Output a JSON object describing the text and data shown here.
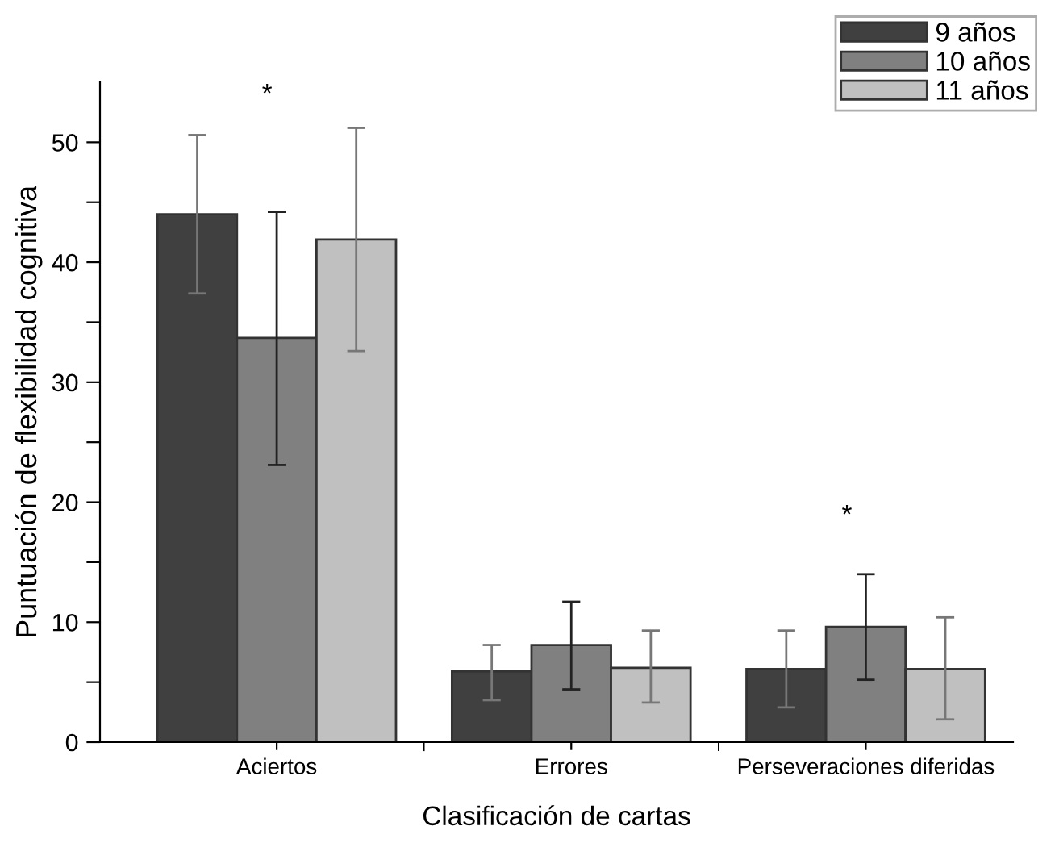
{
  "chart_data": {
    "type": "bar",
    "xlabel": "Clasificación de cartas",
    "ylabel": "Puntuación de flexibilidad cognitiva",
    "categories": [
      "Aciertos",
      "Errores",
      "Perseveraciones diferidas"
    ],
    "series": [
      {
        "name": "9 años",
        "color": "#404040",
        "values": [
          44.0,
          5.9,
          6.1
        ],
        "errors": [
          [
            37.4,
            50.6
          ],
          [
            3.5,
            8.1
          ],
          [
            2.9,
            9.3
          ]
        ]
      },
      {
        "name": "10 años",
        "color": "#808080",
        "values": [
          33.7,
          8.1,
          9.6
        ],
        "errors": [
          [
            23.1,
            44.2
          ],
          [
            4.4,
            11.7
          ],
          [
            5.2,
            14.0
          ]
        ]
      },
      {
        "name": "11 años",
        "color": "#c0c0c0",
        "values": [
          41.9,
          6.2,
          6.1
        ],
        "errors": [
          [
            32.6,
            51.2
          ],
          [
            3.3,
            9.3
          ],
          [
            1.9,
            10.4
          ]
        ]
      }
    ],
    "ylim": [
      0,
      55
    ],
    "yticks": [
      0,
      {
        "value": 5,
        "label": null
      },
      10,
      {
        "value": 15,
        "label": null
      },
      20,
      {
        "value": 25,
        "label": null
      },
      30,
      {
        "value": 35,
        "label": null
      },
      40,
      {
        "value": 45,
        "label": null
      },
      50
    ],
    "annotations": [
      "*",
      "*"
    ],
    "legend": "top right",
    "grid": false
  }
}
